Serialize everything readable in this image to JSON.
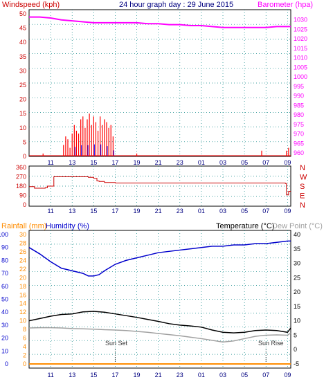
{
  "header": {
    "windspeed_label": "Windspeed (kph)",
    "title": "24 hour graph day : 29 June 2015",
    "barometer_label": "Barometer (hpa)"
  },
  "colors": {
    "wind": "#ff0000",
    "gust_alt": "#0000ff",
    "gust_alt2": "#008000",
    "barometer": "#ff00ff",
    "direction": "#cc0000",
    "humidity": "#0000cc",
    "temperature": "#000000",
    "dewpoint": "#a0a0a0",
    "rainfall": "#ff8c00",
    "grid": "#008080",
    "axis_red": "#cc0000",
    "axis_blue": "#0000cc"
  },
  "x_ticks": [
    "11",
    "13",
    "15",
    "17",
    "19",
    "21",
    "23",
    "01",
    "03",
    "05",
    "07",
    "09"
  ],
  "chart_data": [
    {
      "type": "bar",
      "title": "24 hour graph day : 29 June 2015",
      "ylabel": "Windspeed (kph)",
      "ylim": [
        0,
        50
      ],
      "yticks": [
        0,
        5,
        10,
        15,
        20,
        25,
        30,
        35,
        40,
        45,
        50
      ],
      "x_range_hours": [
        9.0,
        33.3
      ],
      "series": [
        {
          "name": "Windspeed (kph)",
          "x": [
            10.3,
            12.2,
            12.4,
            12.6,
            12.8,
            13.0,
            13.2,
            13.4,
            13.6,
            13.8,
            14.0,
            14.2,
            14.4,
            14.6,
            14.8,
            15.0,
            15.2,
            15.4,
            15.6,
            15.8,
            16.0,
            16.2,
            16.4,
            16.6,
            16.8,
            19.0,
            30.6,
            32.9,
            33.1
          ],
          "values": [
            1,
            4,
            7,
            6,
            3,
            8,
            11,
            9,
            8,
            13,
            14,
            10,
            13,
            15,
            11,
            14,
            12,
            9,
            14,
            11,
            13,
            12,
            10,
            11,
            7,
            1,
            2,
            2,
            3
          ]
        }
      ]
    },
    {
      "type": "line",
      "ylabel": "Barometer (hpa)",
      "ylim": [
        960,
        1035
      ],
      "yticks": [
        960,
        965,
        970,
        975,
        980,
        985,
        990,
        995,
        1000,
        1005,
        1010,
        1015,
        1020,
        1025,
        1030
      ],
      "series": [
        {
          "name": "Barometer (hpa)",
          "x": [
            9.0,
            10.0,
            11.0,
            12.0,
            13.0,
            14.0,
            15.0,
            16.0,
            17.0,
            18.0,
            19.0,
            20.0,
            21.0,
            22.0,
            23.0,
            24.0,
            25.0,
            26.0,
            27.0,
            28.0,
            29.0,
            30.0,
            31.0,
            32.0,
            33.0,
            33.3
          ],
          "values": [
            1031.5,
            1031.5,
            1031,
            1030,
            1029.5,
            1029,
            1028.5,
            1028.5,
            1028.5,
            1028.5,
            1028.5,
            1028,
            1028,
            1027.5,
            1027.5,
            1027,
            1027,
            1026.5,
            1026,
            1026,
            1026,
            1026,
            1026,
            1026.5,
            1026.5,
            1026.5
          ]
        }
      ]
    },
    {
      "type": "line",
      "ylabel": "Wind direction",
      "ylim": [
        0,
        360
      ],
      "yticks": [
        0,
        90,
        180,
        270,
        360
      ],
      "direction_labels": [
        "N",
        "W",
        "S",
        "E",
        "N"
      ],
      "series": [
        {
          "name": "Wind direction",
          "x": [
            9.0,
            9.5,
            10.5,
            10.7,
            11.2,
            11.3,
            12.5,
            13.5,
            14.5,
            15.0,
            15.3,
            15.5,
            16.0,
            17.0,
            20.0,
            24.0,
            28.0,
            31.0,
            32.0,
            32.8,
            32.9,
            33.1,
            33.3
          ],
          "values": [
            175,
            160,
            165,
            180,
            180,
            270,
            270,
            270,
            265,
            255,
            230,
            225,
            215,
            210,
            210,
            210,
            210,
            210,
            210,
            205,
            95,
            130,
            130
          ]
        }
      ]
    },
    {
      "type": "line",
      "ylabel": "Humidity (%)",
      "ylim": [
        0,
        100
      ],
      "yticks": [
        0,
        10,
        20,
        30,
        40,
        50,
        60,
        70,
        80,
        90,
        100
      ],
      "series": [
        {
          "name": "Humidity (%)",
          "x": [
            9.0,
            10.0,
            11.0,
            12.0,
            13.0,
            14.0,
            14.5,
            15.0,
            15.5,
            16.0,
            17.0,
            18.0,
            19.0,
            20.0,
            21.0,
            22.0,
            23.0,
            24.0,
            25.0,
            26.0,
            27.0,
            28.0,
            29.0,
            30.0,
            31.0,
            32.0,
            33.0,
            33.3
          ],
          "values": [
            90,
            85,
            79,
            74,
            72,
            70,
            68,
            68,
            69,
            72,
            77,
            80,
            82,
            84,
            86,
            87,
            88,
            89,
            90,
            91,
            91,
            92,
            92,
            93,
            93,
            94,
            95,
            95
          ]
        },
        {
          "name": "Temperature (°C)",
          "x": [
            9.0,
            10.0,
            11.0,
            12.0,
            13.0,
            14.0,
            15.0,
            16.0,
            17.0,
            18.0,
            19.0,
            20.0,
            21.0,
            22.0,
            23.0,
            24.0,
            25.0,
            26.0,
            27.0,
            28.0,
            29.0,
            30.0,
            31.0,
            32.0,
            33.0,
            33.3
          ],
          "values": [
            10,
            10.8,
            11.6,
            12.2,
            12.4,
            13.1,
            13.3,
            13.0,
            12.4,
            11.8,
            11.2,
            10.5,
            9.8,
            9.0,
            8.5,
            8.2,
            7.8,
            6.8,
            6.0,
            5.8,
            6.0,
            6.6,
            6.8,
            6.6,
            6.0,
            7.5
          ]
        },
        {
          "name": "Dew Point (°C)",
          "x": [
            9.0,
            10.0,
            11.0,
            12.0,
            13.0,
            14.0,
            15.0,
            16.0,
            17.0,
            18.0,
            19.0,
            20.0,
            21.0,
            22.0,
            23.0,
            24.0,
            25.0,
            26.0,
            27.0,
            28.0,
            29.0,
            30.0,
            31.0,
            32.0,
            33.0,
            33.3
          ],
          "values": [
            7.5,
            7.6,
            7.6,
            7.5,
            7.3,
            7.2,
            7.1,
            6.9,
            6.8,
            6.6,
            6.3,
            6.0,
            5.6,
            5.2,
            4.8,
            4.3,
            3.8,
            3.2,
            2.6,
            3.0,
            3.8,
            4.6,
            5.0,
            5.1,
            5.0,
            5.8
          ]
        },
        {
          "name": "Rainfall (mm)",
          "x": [
            9.0,
            33.3
          ],
          "values": [
            0,
            0
          ]
        }
      ],
      "rainfall_ticks": [
        0,
        2,
        4,
        6,
        8,
        10,
        12,
        14,
        16,
        18,
        20,
        22,
        24,
        26,
        28,
        30
      ],
      "temperature_ticks": [
        -5,
        0,
        5,
        10,
        15,
        20,
        25,
        30,
        35,
        40
      ],
      "annotations": [
        {
          "text": "Sun Set",
          "x": 17.0
        },
        {
          "text": "Sun Rise",
          "x": 31.0
        }
      ]
    }
  ],
  "labels": {
    "rainfall": "Rainfall (mm)",
    "humidity": "Humidity (%)",
    "temperature": "Temperature (°C)",
    "dewpoint": "Dew Point (°C)",
    "sunset": "Sun Set",
    "sunrise": "Sun Rise"
  }
}
